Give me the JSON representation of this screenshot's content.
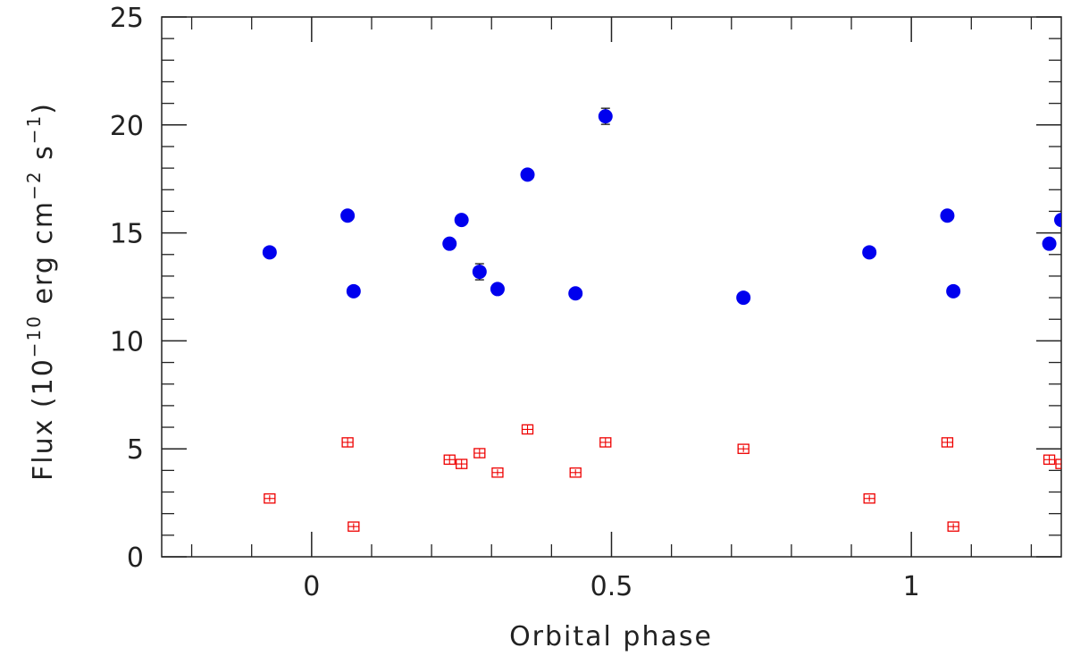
{
  "chart_data": {
    "type": "scatter",
    "xlabel": "Orbital phase",
    "ylabel": {
      "text": "Flux (10",
      "exp1": "−10",
      "mid1": " erg cm",
      "exp2": "−2",
      "mid2": " s",
      "exp3": "−1",
      "end": ")"
    },
    "xlim": [
      -0.25,
      1.25
    ],
    "ylim": [
      0,
      25
    ],
    "x_ticks": [
      0,
      0.5,
      1
    ],
    "x_tick_labels": [
      "0",
      "0.5",
      "1"
    ],
    "x_minor_step": 0.1,
    "y_ticks": [
      0,
      5,
      10,
      15,
      20,
      25
    ],
    "y_tick_labels": [
      "0",
      "5",
      "10",
      "15",
      "20",
      "25"
    ],
    "y_minor_step": 1,
    "grid": false,
    "series": [
      {
        "marker": "filled-circle",
        "color": "#0000ee",
        "x": [
          -0.07,
          0.06,
          0.07,
          0.23,
          0.25,
          0.28,
          0.31,
          0.36,
          0.44,
          0.49,
          0.72,
          0.93,
          1.06,
          1.07,
          1.23,
          1.25
        ],
        "y": [
          14.1,
          15.8,
          12.3,
          14.5,
          15.6,
          13.2,
          12.4,
          17.7,
          12.2,
          20.4,
          12.0,
          14.1,
          15.8,
          12.3,
          14.5,
          15.6
        ],
        "yerr": [
          0.0,
          0.0,
          0.0,
          0.0,
          0.0,
          0.25,
          0.0,
          0.0,
          0.0,
          0.3,
          0.0,
          0.0,
          0.0,
          0.0,
          0.0,
          0.0
        ]
      },
      {
        "marker": "open-square",
        "color": "#ee0000",
        "x": [
          -0.07,
          0.06,
          0.07,
          0.23,
          0.25,
          0.28,
          0.31,
          0.36,
          0.44,
          0.49,
          0.72,
          0.93,
          1.06,
          1.07,
          1.23,
          1.25
        ],
        "y": [
          2.7,
          5.3,
          1.4,
          4.5,
          4.3,
          4.8,
          3.9,
          5.9,
          3.9,
          5.3,
          5.0,
          2.7,
          5.3,
          1.4,
          4.5,
          4.3
        ],
        "yerr": [
          0.15,
          0.2,
          0.15,
          0.2,
          0.2,
          0.2,
          0.15,
          0.2,
          0.15,
          0.2,
          0.15,
          0.15,
          0.2,
          0.15,
          0.2,
          0.2
        ]
      }
    ]
  }
}
